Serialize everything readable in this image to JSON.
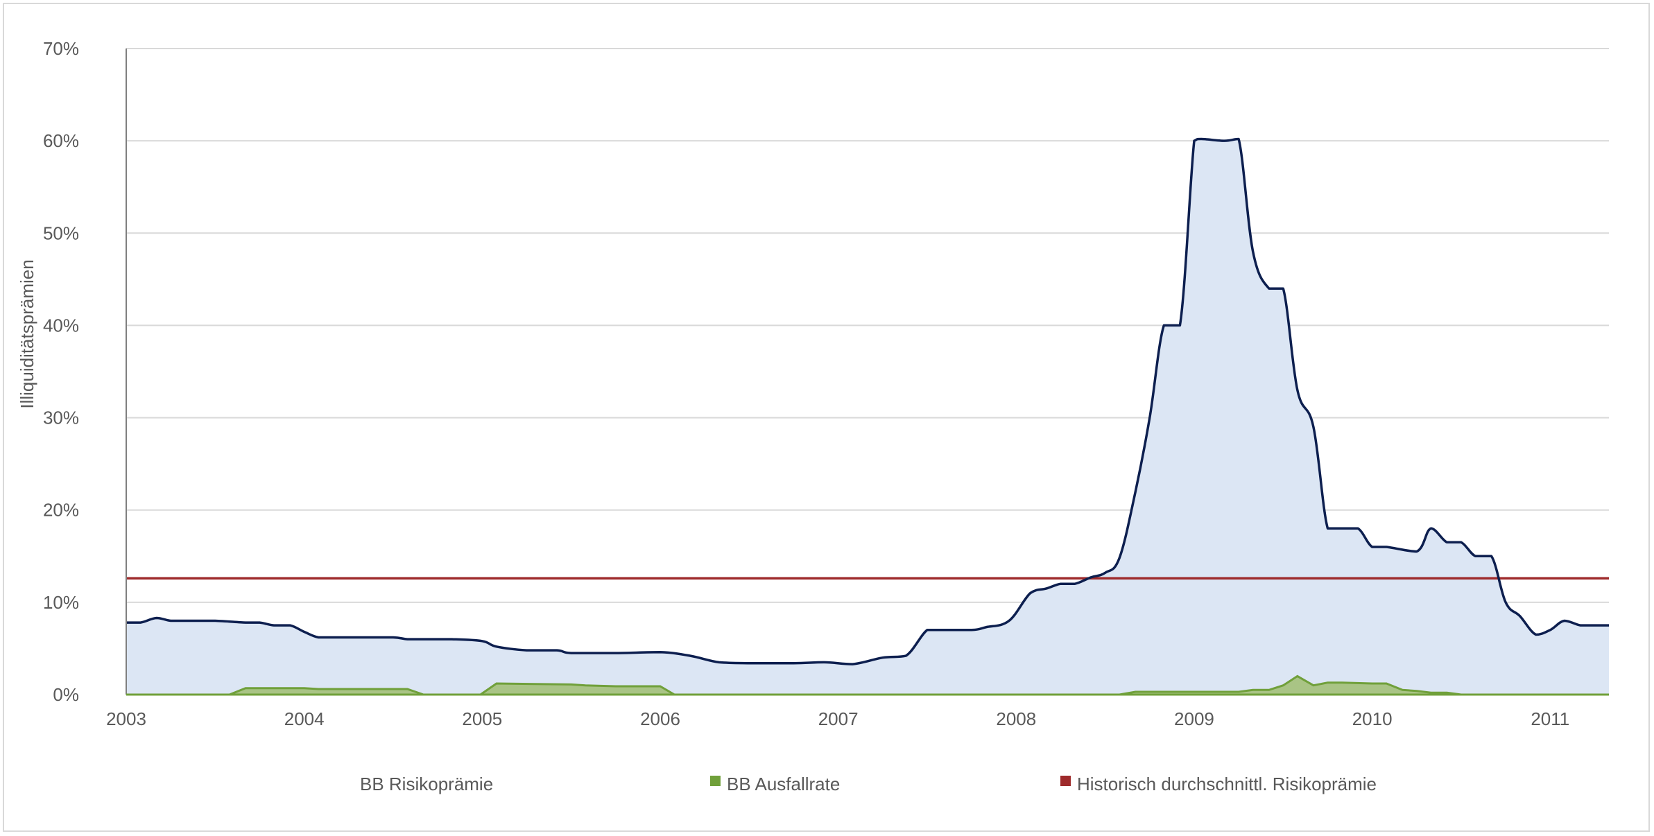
{
  "chart_data": {
    "type": "area",
    "title": "",
    "xlabel": "",
    "ylabel": "Illiquiditätsprämien",
    "xlim": [
      2003.0,
      2011.33
    ],
    "ylim": [
      0,
      70
    ],
    "y_ticks": [
      0,
      10,
      20,
      30,
      40,
      50,
      60,
      70
    ],
    "y_tick_labels": [
      "0%",
      "10%",
      "20%",
      "30%",
      "40%",
      "50%",
      "60%",
      "70%"
    ],
    "x_ticks": [
      2003,
      2004,
      2005,
      2006,
      2007,
      2008,
      2009,
      2010,
      2011
    ],
    "x_tick_labels": [
      "2003",
      "2004",
      "2005",
      "2006",
      "2007",
      "2008",
      "2009",
      "2010",
      "2011"
    ],
    "grid": "horizontal",
    "legend_position": "bottom",
    "colors": {
      "risk_line": "#0d1f4f",
      "risk_fill": "#dce6f4",
      "default_line": "#70a03a",
      "default_fill": "#a9c485",
      "historical": "#9e2a2b",
      "grid": "#d9d9d9",
      "axis": "#7f7f7f"
    },
    "series": [
      {
        "name": "BB Risikoprämie",
        "render": "area-line",
        "x": [
          2003.0,
          2003.08,
          2003.17,
          2003.25,
          2003.33,
          2003.5,
          2003.67,
          2003.75,
          2003.83,
          2003.92,
          2004.0,
          2004.08,
          2004.17,
          2004.33,
          2004.5,
          2004.58,
          2004.67,
          2004.83,
          2005.0,
          2005.08,
          2005.25,
          2005.42,
          2005.5,
          2005.75,
          2006.0,
          2006.17,
          2006.33,
          2006.5,
          2006.75,
          2006.92,
          2007.08,
          2007.25,
          2007.38,
          2007.5,
          2007.58,
          2007.75,
          2007.83,
          2007.96,
          2008.08,
          2008.17,
          2008.25,
          2008.33,
          2008.42,
          2008.5,
          2008.58,
          2008.67,
          2008.75,
          2008.83,
          2008.92,
          2009.0,
          2009.04,
          2009.17,
          2009.25,
          2009.33,
          2009.42,
          2009.5,
          2009.58,
          2009.67,
          2009.75,
          2009.83,
          2009.92,
          2010.0,
          2010.08,
          2010.25,
          2010.33,
          2010.42,
          2010.5,
          2010.58,
          2010.67,
          2010.75,
          2010.83,
          2010.92,
          2011.0,
          2011.08,
          2011.17,
          2011.25,
          2011.33
        ],
        "values": [
          7.8,
          7.8,
          8.3,
          8.0,
          8.0,
          8.0,
          7.8,
          7.8,
          7.5,
          7.5,
          6.8,
          6.2,
          6.2,
          6.2,
          6.2,
          6.0,
          6.0,
          6.0,
          5.8,
          5.2,
          4.8,
          4.8,
          4.5,
          4.5,
          4.6,
          4.2,
          3.5,
          3.4,
          3.4,
          3.5,
          3.3,
          4.0,
          4.2,
          7.0,
          7.0,
          7.0,
          7.3,
          8.0,
          11.0,
          11.5,
          12.0,
          12.0,
          12.7,
          13.2,
          14.8,
          22.0,
          30.0,
          40.0,
          40.0,
          60.0,
          60.2,
          60.0,
          60.2,
          48.0,
          44.0,
          44.0,
          33.0,
          29.0,
          18.0,
          18.0,
          18.0,
          16.0,
          16.0,
          15.5,
          18.0,
          16.5,
          16.5,
          15.0,
          15.0,
          10.0,
          8.5,
          6.5,
          7.0,
          8.0,
          7.5,
          7.5,
          7.5
        ]
      },
      {
        "name": "BB Ausfallrate",
        "render": "area",
        "x": [
          2003.0,
          2003.58,
          2003.67,
          2003.75,
          2004.0,
          2004.08,
          2004.58,
          2004.67,
          2004.99,
          2005.08,
          2005.5,
          2005.58,
          2005.75,
          2006.0,
          2006.08,
          2008.58,
          2008.67,
          2008.83,
          2009.0,
          2009.25,
          2009.33,
          2009.42,
          2009.5,
          2009.58,
          2009.67,
          2009.75,
          2009.83,
          2010.0,
          2010.08,
          2010.17,
          2010.25,
          2010.33,
          2010.42,
          2010.5,
          2011.33
        ],
        "values": [
          0,
          0,
          0.7,
          0.7,
          0.7,
          0.6,
          0.6,
          0,
          0,
          1.2,
          1.1,
          1.0,
          0.9,
          0.9,
          0,
          0,
          0.3,
          0.3,
          0.3,
          0.3,
          0.5,
          0.5,
          1.0,
          2.0,
          1.0,
          1.3,
          1.3,
          1.2,
          1.2,
          0.5,
          0.4,
          0.2,
          0.2,
          0,
          0
        ]
      },
      {
        "name": "Historisch durchschnittl. Risikoprämie",
        "render": "line",
        "x": [
          2003.0,
          2011.33
        ],
        "values": [
          12.6,
          12.6
        ]
      }
    ]
  }
}
